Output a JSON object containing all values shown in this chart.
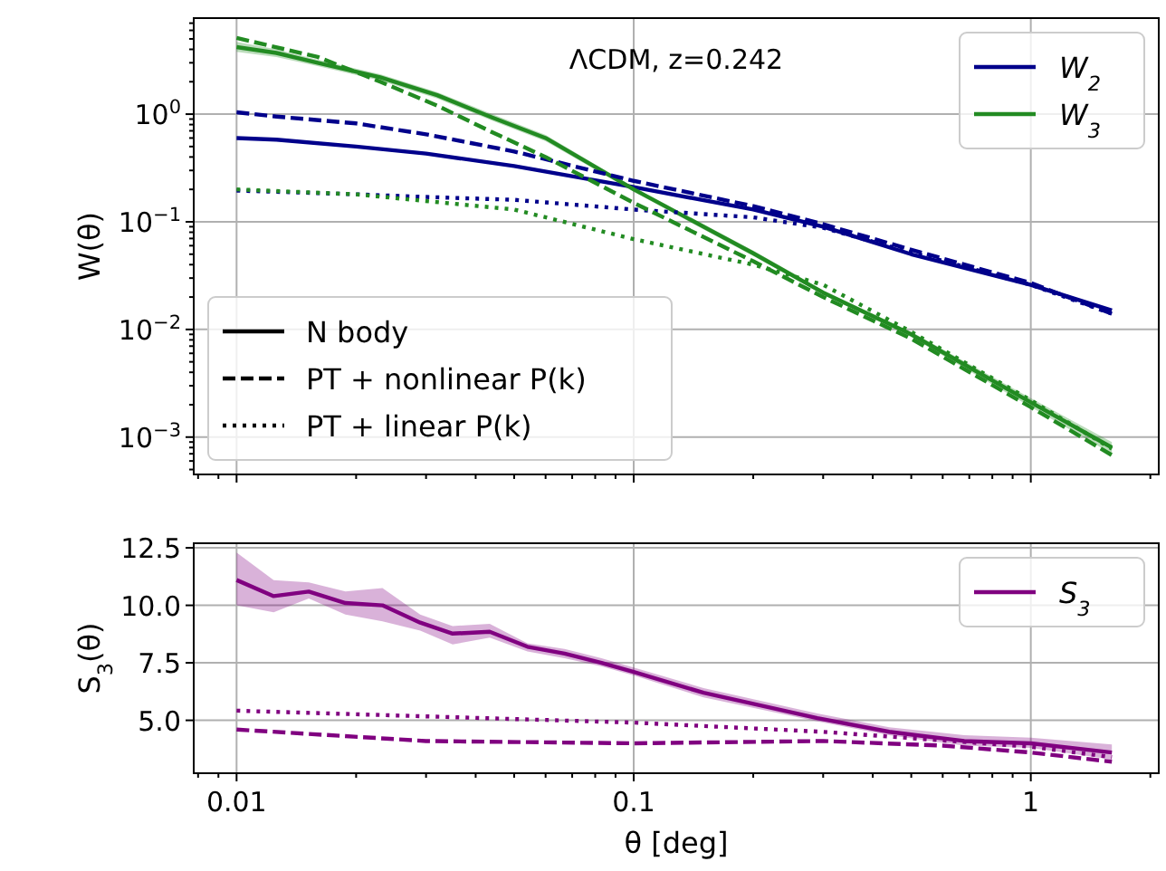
{
  "chart_data": [
    {
      "type": "line",
      "ylabel": "W(θ)",
      "log": "xy",
      "grid": true,
      "legend": "top right",
      "tick_labels": "y",
      "xlim": [
        0.0078,
        2.1
      ],
      "ylim": [
        0.00045,
        7.8
      ],
      "xticks": [
        0.01,
        0.1,
        1
      ],
      "yticks": [
        {
          "value": 1,
          "label": "10$^{0}$"
        },
        {
          "value": 0.1,
          "label": "10$^{−1}$"
        },
        {
          "value": 0.01,
          "label": "10$^{−2}$"
        },
        {
          "value": 0.001,
          "label": "10$^{−3}$"
        }
      ],
      "annotations": [
        "ΛCDM, z=0.242",
        "N body",
        "PT + nonlinear P(k)",
        "PT + linear P(k)"
      ],
      "series": [
        {
          "name": "W$_{2}$",
          "color": "#00008b",
          "line_style": "solid",
          "x": [
            0.01,
            0.0126,
            0.02,
            0.03,
            0.05,
            0.1,
            0.2,
            0.3,
            0.5,
            1,
            1.6
          ],
          "values": [
            0.6,
            0.58,
            0.5,
            0.43,
            0.33,
            0.21,
            0.13,
            0.09,
            0.05,
            0.026,
            0.015
          ]
        },
        {
          "name": "W$_{3}$",
          "color": "#228b22",
          "line_style": "solid",
          "x": [
            0.01,
            0.0126,
            0.016,
            0.023,
            0.032,
            0.044,
            0.06,
            0.1,
            0.2,
            0.3,
            0.5,
            1,
            1.6
          ],
          "values": [
            4.2,
            3.7,
            3.0,
            2.2,
            1.5,
            0.93,
            0.6,
            0.2,
            0.051,
            0.022,
            0.009,
            0.0021,
            0.0008
          ],
          "lower": [
            3.8,
            3.4,
            2.8,
            2.05,
            1.4,
            0.87,
            0.56,
            0.19,
            0.048,
            0.021,
            0.0085,
            0.0019,
            0.0007
          ],
          "upper": [
            4.7,
            4.0,
            3.2,
            2.35,
            1.6,
            1.0,
            0.64,
            0.21,
            0.054,
            0.023,
            0.0095,
            0.0023,
            0.0009
          ]
        },
        {
          "color": "#00008b",
          "line_style": "dashed",
          "x": [
            0.01,
            0.0126,
            0.02,
            0.03,
            0.05,
            0.1,
            0.2,
            0.3,
            0.5,
            1,
            1.6
          ],
          "values": [
            1.04,
            0.95,
            0.82,
            0.65,
            0.45,
            0.24,
            0.14,
            0.095,
            0.055,
            0.027,
            0.014
          ]
        },
        {
          "color": "#00008b",
          "line_style": "dotted",
          "x": [
            0.01,
            0.0126,
            0.02,
            0.03,
            0.05,
            0.1,
            0.2,
            0.3,
            0.5,
            1,
            1.6
          ],
          "values": [
            0.195,
            0.19,
            0.18,
            0.17,
            0.16,
            0.13,
            0.11,
            0.088,
            0.052,
            0.026,
            0.014
          ]
        },
        {
          "color": "#228b22",
          "line_style": "dashed",
          "x": [
            0.01,
            0.016,
            0.023,
            0.032,
            0.044,
            0.06,
            0.1,
            0.2,
            0.3,
            0.5,
            1,
            1.6
          ],
          "values": [
            5.1,
            3.4,
            2.0,
            1.2,
            0.68,
            0.4,
            0.15,
            0.043,
            0.02,
            0.0082,
            0.0019,
            0.00068
          ]
        },
        {
          "color": "#228b22",
          "line_style": "dotted",
          "x": [
            0.01,
            0.02,
            0.05,
            0.1,
            0.2,
            0.3,
            0.5,
            1,
            1.6
          ],
          "values": [
            0.2,
            0.18,
            0.13,
            0.069,
            0.04,
            0.026,
            0.0095,
            0.0022,
            0.00078
          ]
        }
      ]
    },
    {
      "type": "line",
      "xlabel": "θ [deg]",
      "ylabel": "S$_{3}$(θ)",
      "log": "x",
      "grid": true,
      "legend": "top right",
      "xlim": [
        0.0078,
        2.1
      ],
      "ylim": [
        2.7,
        12.7
      ],
      "xticks": [
        0.01,
        0.1,
        1
      ],
      "yticks": [
        {
          "value": 5,
          "label": "5.0"
        },
        7.5,
        {
          "value": 10,
          "label": "10.0"
        },
        12.5
      ],
      "series": [
        {
          "name": "S$_{3}$",
          "color": "#800080",
          "line_style": "solid",
          "x": [
            0.01,
            0.0124,
            0.0152,
            0.0188,
            0.0233,
            0.029,
            0.035,
            0.0434,
            0.054,
            0.067,
            0.083,
            0.1,
            0.15,
            0.29,
            0.44,
            0.68,
            1,
            1.6
          ],
          "values": [
            11.1,
            10.4,
            10.6,
            10.1,
            10.0,
            9.25,
            8.77,
            8.85,
            8.2,
            7.9,
            7.5,
            7.1,
            6.2,
            5.1,
            4.5,
            4.1,
            4.0,
            3.6
          ],
          "lower": [
            10.0,
            9.7,
            10.3,
            9.6,
            9.3,
            8.9,
            8.3,
            8.6,
            8.0,
            7.7,
            7.35,
            6.95,
            6.0,
            4.95,
            4.35,
            3.9,
            3.8,
            3.3
          ],
          "upper": [
            12.3,
            11.1,
            11.0,
            10.6,
            10.75,
            9.6,
            9.1,
            9.2,
            8.35,
            8.1,
            7.7,
            7.3,
            6.4,
            5.3,
            4.7,
            4.35,
            4.25,
            3.95
          ]
        },
        {
          "color": "#800080",
          "line_style": "dashed",
          "x": [
            0.01,
            0.03,
            0.1,
            0.3,
            0.6,
            1,
            1.6
          ],
          "values": [
            4.6,
            4.1,
            4.0,
            4.1,
            3.9,
            3.6,
            3.2
          ]
        },
        {
          "color": "#800080",
          "line_style": "dotted",
          "x": [
            0.01,
            0.1,
            0.3,
            1,
            1.6
          ],
          "values": [
            5.42,
            4.9,
            4.5,
            3.85,
            3.4
          ]
        }
      ]
    }
  ]
}
